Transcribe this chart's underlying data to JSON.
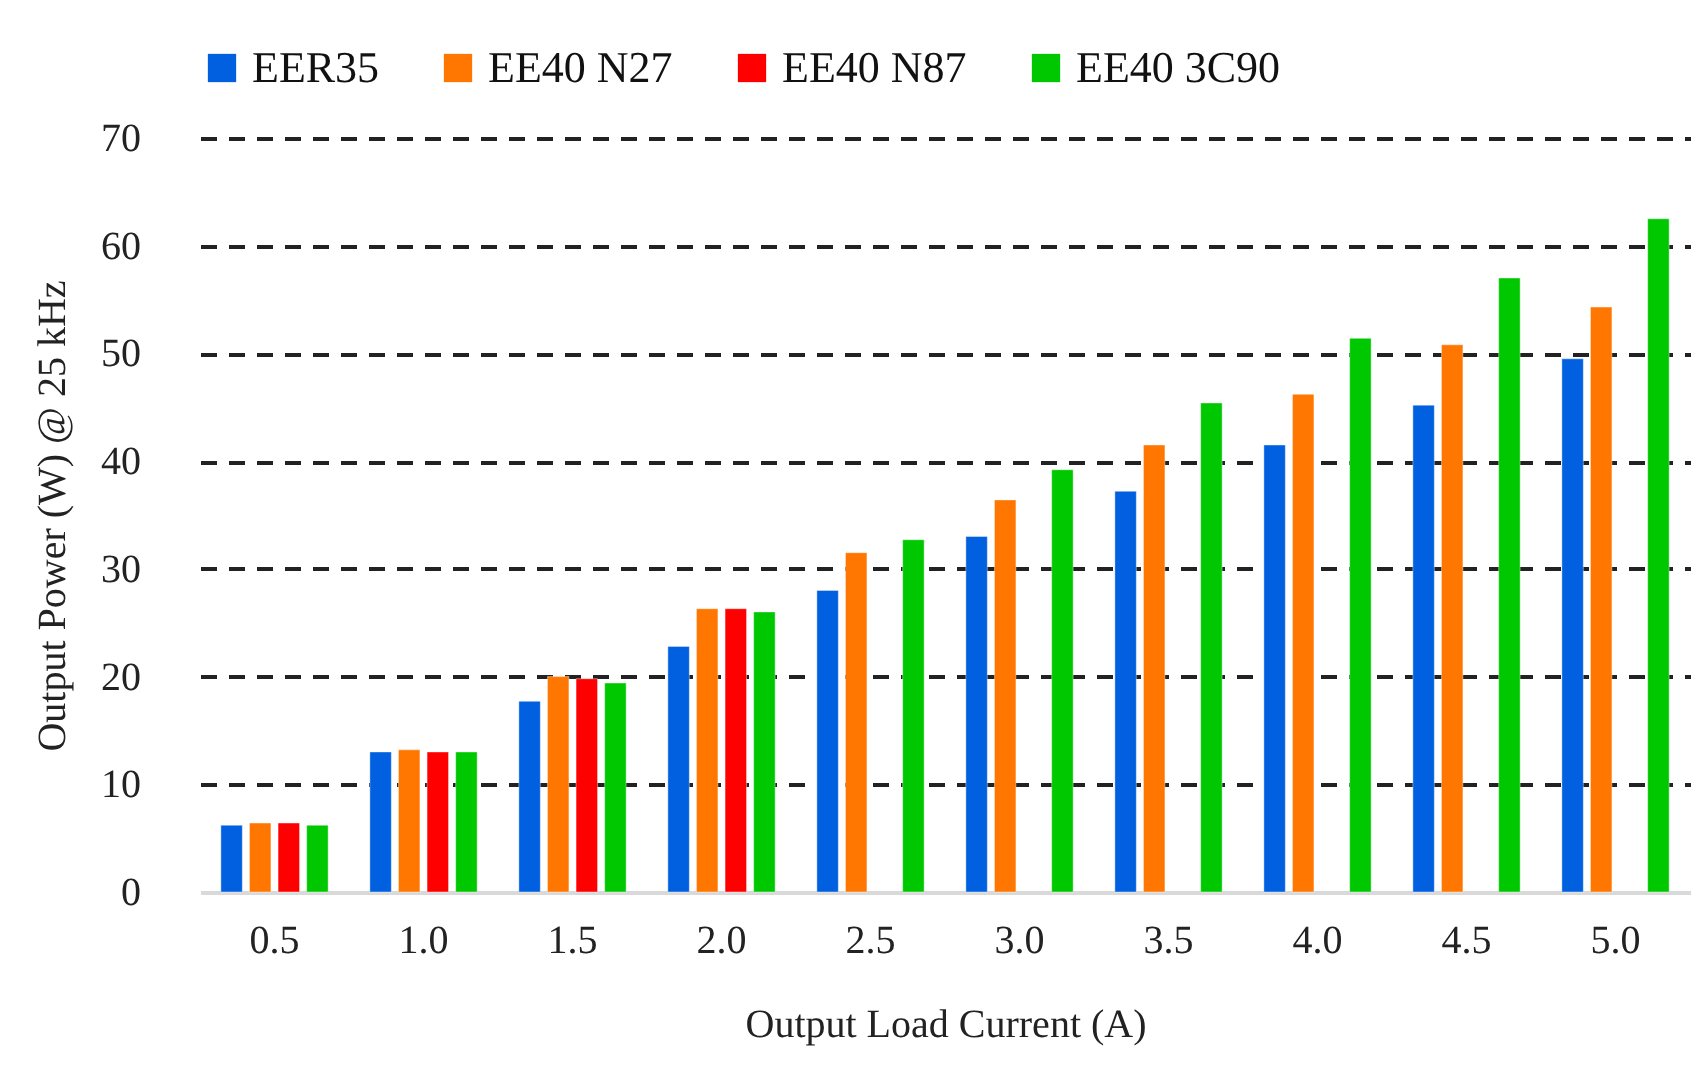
{
  "chart_data": {
    "type": "bar",
    "xlabel": "Output Load Current (A)",
    "ylabel": "Output Power (W) @ 25 kHz",
    "categories": [
      "0.5",
      "1.0",
      "1.5",
      "2.0",
      "2.5",
      "3.0",
      "3.5",
      "4.0",
      "4.5",
      "5.0"
    ],
    "series": [
      {
        "name": "EER35",
        "color": "#0060df",
        "values": [
          6.2,
          13,
          17.7,
          22.8,
          28,
          33,
          37.2,
          41.5,
          45.2,
          49.5
        ]
      },
      {
        "name": "EE40 N27",
        "color": "#ff7700",
        "values": [
          6.4,
          13.2,
          20,
          26.3,
          31.5,
          36.4,
          41.5,
          46.2,
          50.8,
          54.3
        ]
      },
      {
        "name": "EE40 N87",
        "color": "#ff0000",
        "values": [
          6.4,
          13,
          19.8,
          26.3,
          null,
          null,
          null,
          null,
          null,
          null
        ]
      },
      {
        "name": "EE40 3C90",
        "color": "#00c800",
        "values": [
          6.2,
          13,
          19.4,
          26,
          32.7,
          39.2,
          45.4,
          51.4,
          57,
          62.5
        ]
      }
    ],
    "ylim": [
      0,
      70
    ],
    "yticks": [
      0,
      10,
      20,
      30,
      40,
      50,
      60,
      70
    ],
    "grid": "y",
    "legend": "top"
  }
}
